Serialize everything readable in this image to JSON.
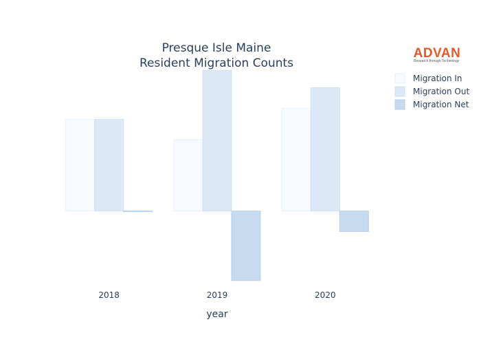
{
  "logo": {
    "name": "ADVAN",
    "tagline": "Research through Technology",
    "color": "#e8572a"
  },
  "chart_data": {
    "type": "bar",
    "title": "Presque Isle Maine",
    "subtitle": "Resident Migration Counts",
    "xlabel": "year",
    "ylabel": "",
    "categories": [
      "2018",
      "2019",
      "2020"
    ],
    "ylim": [
      -45,
      90
    ],
    "grid": false,
    "legend_position": "top-right",
    "series": [
      {
        "name": "Migration In",
        "values": [
          58,
          45,
          65
        ],
        "color": "#f7fafe",
        "stroke": "#eaf1fb"
      },
      {
        "name": "Migration Out",
        "values": [
          58,
          89,
          78
        ],
        "color": "#dde9f7",
        "stroke": "#cfdff3"
      },
      {
        "name": "Migration Net",
        "values": [
          0,
          -44,
          -13
        ],
        "color": "#c6dbf0",
        "stroke": "#b7d0ec"
      }
    ]
  }
}
